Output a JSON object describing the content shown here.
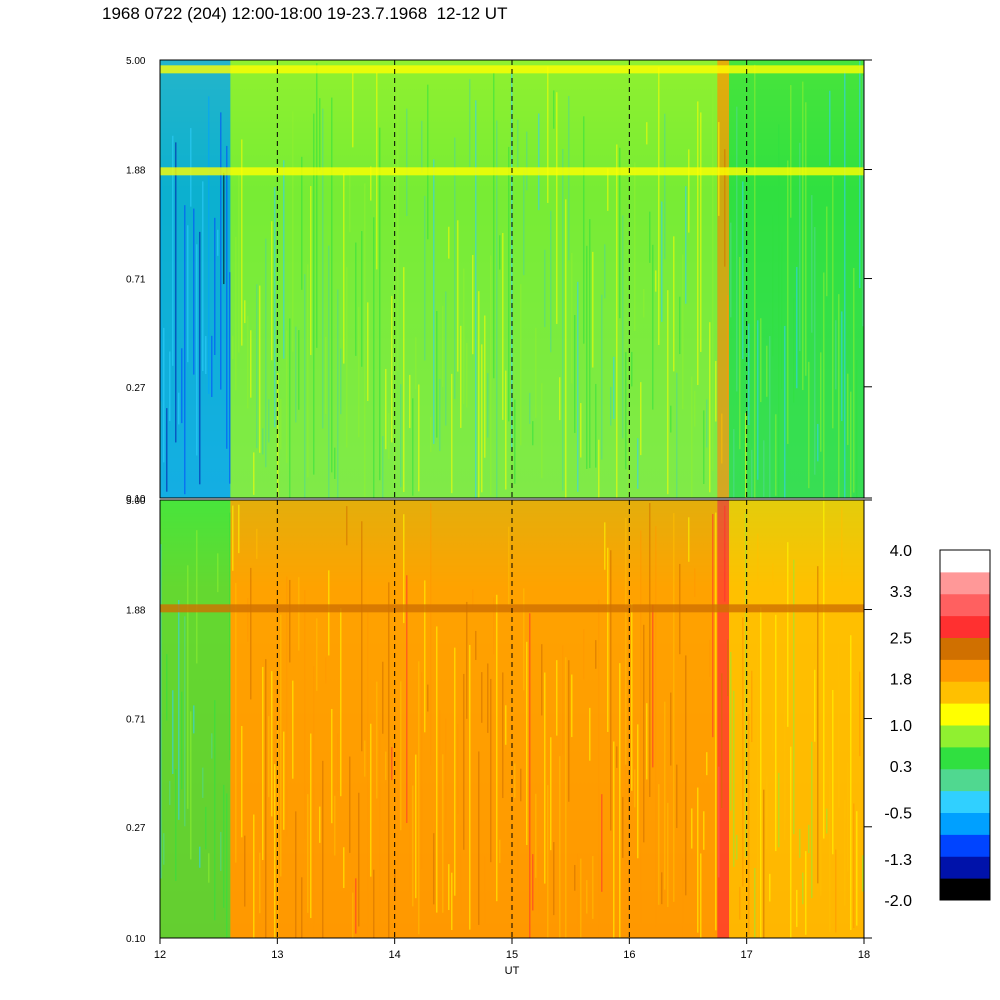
{
  "title": "1968 0722 (204) 12:00-18:00 19-23.7.1968  12-12 UT",
  "chart_data": {
    "type": "heatmap",
    "title": "1968 0722 (204) 12:00-18:00 19-23.7.1968  12-12 UT",
    "xlabel": "UT",
    "x_range": [
      12,
      18
    ],
    "x_ticks": [
      "12",
      "13",
      "14",
      "15",
      "16",
      "17",
      "18"
    ],
    "y_scale": "log",
    "y_range": [
      0.1,
      5.0
    ],
    "y_ticks": [
      "5.00",
      "1.88",
      "0.71",
      "0.27",
      "0.10"
    ],
    "dashed_gridlines_x": [
      13,
      14,
      15,
      16,
      17
    ],
    "colorbar": {
      "levels": [
        -2.0,
        -1.6,
        -1.3,
        -0.9,
        -0.5,
        -0.1,
        0.3,
        0.6,
        1.0,
        1.4,
        1.8,
        2.1,
        2.5,
        2.9,
        3.3,
        3.6,
        4.0
      ],
      "tick_labels": [
        "4.0",
        "3.3",
        "2.5",
        "1.8",
        "1.0",
        "0.3",
        "-0.5",
        "-1.3",
        "-2.0"
      ],
      "colors": [
        "#000000",
        "#0012aa",
        "#0044ff",
        "#00a0ff",
        "#30d0ff",
        "#50d890",
        "#30e040",
        "#90f030",
        "#ffff00",
        "#ffc000",
        "#ff9800",
        "#d07000",
        "#ff3030",
        "#ff6060",
        "#ff9898",
        "#ffffff"
      ]
    },
    "panels": [
      {
        "name": "upper",
        "segments": [
          {
            "x": [
              12.0,
              12.6
            ],
            "level": -0.9
          },
          {
            "x": [
              12.6,
              16.75
            ],
            "level": 0.6
          },
          {
            "x": [
              16.75,
              16.85
            ],
            "level": 1.8
          },
          {
            "x": [
              16.85,
              18.0
            ],
            "level": 0.3
          }
        ],
        "bands": [
          {
            "y": 4.6,
            "level": 1.0
          },
          {
            "y": 1.85,
            "level": 1.0
          }
        ]
      },
      {
        "name": "lower",
        "segments": [
          {
            "x": [
              12.0,
              12.6
            ],
            "level": 0.3
          },
          {
            "x": [
              12.6,
              16.75
            ],
            "level": 1.8
          },
          {
            "x": [
              16.75,
              16.85
            ],
            "level": 2.5
          },
          {
            "x": [
              16.85,
              18.0
            ],
            "level": 1.4
          }
        ],
        "bands": [
          {
            "y": 1.9,
            "level": 2.1
          }
        ]
      }
    ]
  }
}
